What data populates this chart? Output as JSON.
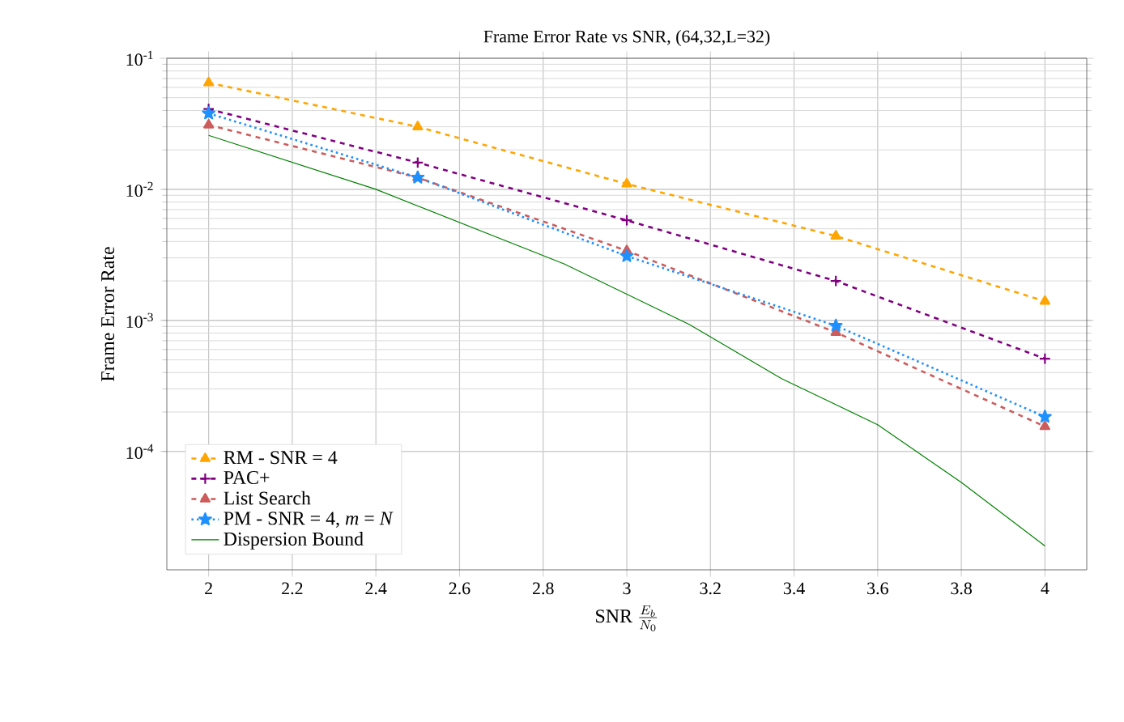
{
  "chart_data": {
    "type": "line",
    "title": "Frame Error Rate vs SNR, (64,32,L=32)",
    "xlabel": "\\mathrm{SNR}\\ \\frac{E_b}{N_0}",
    "ylabel": "Frame Error Rate",
    "log": "y",
    "grid": true,
    "legend": "bottom left",
    "xlim": [
      1.9,
      4.1
    ],
    "ylim": [
      1.25e-05,
      0.1
    ],
    "xticks": [
      2,
      2.2,
      2.4,
      2.6,
      2.8,
      3,
      3.2,
      3.4,
      3.6,
      3.8,
      4
    ],
    "yticks": [
      {
        "value": 0.0001,
        "label": "10$^{-4}$"
      },
      {
        "value": 0.001,
        "label": "10$^{-3}$"
      },
      {
        "value": 0.01,
        "label": "10$^{-2}$"
      },
      {
        "value": 0.1,
        "label": "10$^{-1}$"
      }
    ],
    "series": [
      {
        "name": "RM - SNR = 4",
        "color": "#ffa500",
        "marker": "triangle",
        "line_style": "dashed",
        "x": [
          2,
          2.5,
          3,
          3.5,
          4
        ],
        "values": [
          0.065,
          0.03,
          0.011,
          0.0044,
          0.0014
        ]
      },
      {
        "name": "PAC+",
        "color": "#800080",
        "marker": "cross",
        "line_style": "dashed",
        "x": [
          2,
          2.5,
          3,
          3.5,
          4
        ],
        "values": [
          0.041,
          0.016,
          0.0058,
          0.002,
          0.00051
        ]
      },
      {
        "name": "List Search",
        "color": "#cd5c5c",
        "marker": "triangle",
        "line_style": "dashed",
        "x": [
          2,
          2.5,
          3,
          3.5,
          4
        ],
        "values": [
          0.031,
          0.0123,
          0.0034,
          0.00081,
          0.000155
        ]
      },
      {
        "name": "PM - SNR = 4, *m* = *N*",
        "color": "#1e90ff",
        "marker": "star",
        "line_style": "dotted",
        "x": [
          2,
          2.5,
          3,
          3.5,
          4
        ],
        "values": [
          0.038,
          0.0123,
          0.0031,
          0.00091,
          0.000184
        ]
      },
      {
        "name": "Dispersion Bound",
        "color": "#008000",
        "marker": "none",
        "line_style": "solid",
        "x": [
          2,
          2.4,
          2.85,
          3.15,
          3.37,
          3.6,
          3.8,
          4
        ],
        "values": [
          0.0258,
          0.01,
          0.0027,
          0.00093,
          0.00036,
          0.00016,
          5.8e-05,
          1.9e-05
        ]
      }
    ]
  }
}
